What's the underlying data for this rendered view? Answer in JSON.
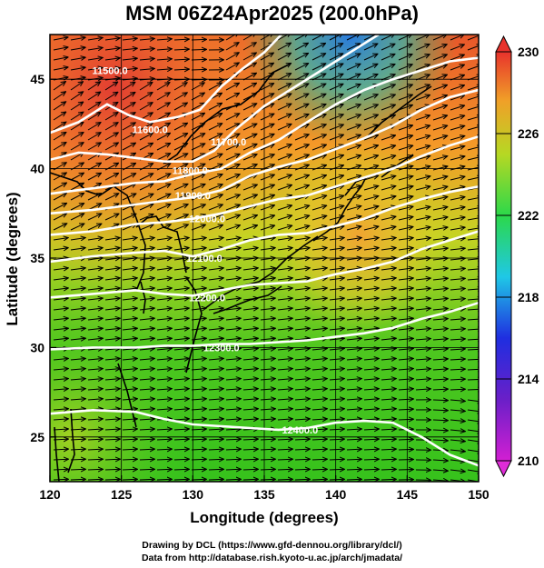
{
  "title": "MSM 06Z24Apr2025 (200.0hPa)",
  "x_axis": {
    "label": "Longitude (degrees)",
    "range": [
      120,
      150
    ],
    "ticks": [
      "120",
      "125",
      "130",
      "135",
      "140",
      "145",
      "150"
    ],
    "tick_values": [
      120,
      125,
      130,
      135,
      140,
      145,
      150
    ]
  },
  "y_axis": {
    "label": "Latitude  (degrees)",
    "range": [
      22.5,
      47.5
    ],
    "ticks": [
      "25",
      "30",
      "35",
      "40",
      "45"
    ],
    "tick_values": [
      25,
      30,
      35,
      40,
      45
    ]
  },
  "colorbar": {
    "ticks": [
      "210",
      "214",
      "218",
      "222",
      "226",
      "230"
    ],
    "tick_values": [
      210,
      214,
      218,
      222,
      226,
      230
    ],
    "range": [
      210,
      230
    ]
  },
  "contour_labels": [
    {
      "text": "11500.0",
      "lon": 124.2,
      "lat": 45.5
    },
    {
      "text": "11600.0",
      "lon": 127.0,
      "lat": 42.2
    },
    {
      "text": "11700.0",
      "lon": 132.5,
      "lat": 41.5
    },
    {
      "text": "11800.0",
      "lon": 129.8,
      "lat": 39.9
    },
    {
      "text": "11900.0",
      "lon": 130.0,
      "lat": 38.5
    },
    {
      "text": "12000.0",
      "lon": 131.0,
      "lat": 37.2
    },
    {
      "text": "12100.0",
      "lon": 130.8,
      "lat": 35.0
    },
    {
      "text": "12200.0",
      "lon": 131.0,
      "lat": 32.8
    },
    {
      "text": "12300.0",
      "lon": 132.0,
      "lat": 30.0
    },
    {
      "text": "12400.0",
      "lon": 137.5,
      "lat": 25.4
    }
  ],
  "contours": [
    [
      [
        120,
        42.0
      ],
      [
        122,
        42.6
      ],
      [
        124,
        43.6
      ],
      [
        125.5,
        43.0
      ],
      [
        127,
        42.6
      ],
      [
        129,
        42.9
      ],
      [
        130.5,
        43.3
      ],
      [
        132,
        44.6
      ],
      [
        133.5,
        45.6
      ],
      [
        135,
        46.5
      ],
      [
        136.2,
        47.5
      ]
    ],
    [
      [
        120,
        40.5
      ],
      [
        122,
        40.9
      ],
      [
        124,
        40.8
      ],
      [
        126,
        40.6
      ],
      [
        128,
        40.4
      ],
      [
        130,
        40.4
      ],
      [
        131.5,
        41.0
      ],
      [
        133,
        42.2
      ],
      [
        135,
        43.5
      ],
      [
        137,
        44.5
      ],
      [
        139,
        45.5
      ],
      [
        141,
        46.5
      ],
      [
        143,
        47.5
      ]
    ],
    [
      [
        120,
        38.6
      ],
      [
        123,
        38.9
      ],
      [
        126,
        39.2
      ],
      [
        128,
        39.3
      ],
      [
        130,
        39.7
      ],
      [
        132,
        40.0
      ],
      [
        134,
        40.9
      ],
      [
        136,
        41.6
      ],
      [
        138,
        42.6
      ],
      [
        140,
        43.6
      ],
      [
        142,
        44.4
      ],
      [
        144,
        45.0
      ],
      [
        146,
        45.5
      ],
      [
        148,
        46.0
      ],
      [
        150,
        46.2
      ]
    ],
    [
      [
        120,
        37.5
      ],
      [
        123,
        37.7
      ],
      [
        126,
        38.0
      ],
      [
        128,
        38.2
      ],
      [
        130,
        38.4
      ],
      [
        132,
        38.8
      ],
      [
        134,
        39.6
      ],
      [
        136,
        40.1
      ],
      [
        138,
        40.5
      ],
      [
        140,
        41.1
      ],
      [
        142,
        41.7
      ],
      [
        144,
        42.4
      ],
      [
        146,
        43.3
      ],
      [
        148,
        44.0
      ],
      [
        150,
        44.4
      ]
    ],
    [
      [
        120,
        36.3
      ],
      [
        123,
        36.5
      ],
      [
        126,
        36.9
      ],
      [
        128,
        37.0
      ],
      [
        130,
        37.2
      ],
      [
        132,
        37.5
      ],
      [
        134,
        37.9
      ],
      [
        136,
        38.3
      ],
      [
        138,
        38.5
      ],
      [
        140,
        39.0
      ],
      [
        142,
        39.5
      ],
      [
        144,
        40.0
      ],
      [
        146,
        40.7
      ],
      [
        148,
        41.3
      ],
      [
        150,
        41.8
      ]
    ],
    [
      [
        120,
        34.8
      ],
      [
        123,
        35.1
      ],
      [
        126,
        35.3
      ],
      [
        128,
        35.4
      ],
      [
        130,
        35.1
      ],
      [
        132,
        35.5
      ],
      [
        134,
        36.0
      ],
      [
        136,
        36.3
      ],
      [
        138,
        36.4
      ],
      [
        140,
        36.8
      ],
      [
        142,
        37.2
      ],
      [
        144,
        37.8
      ],
      [
        146,
        38.3
      ],
      [
        148,
        38.7
      ],
      [
        150,
        39.0
      ]
    ],
    [
      [
        120,
        32.8
      ],
      [
        123,
        33.0
      ],
      [
        126,
        33.2
      ],
      [
        128,
        33.0
      ],
      [
        130,
        32.9
      ],
      [
        132,
        33.2
      ],
      [
        134,
        33.5
      ],
      [
        136,
        33.6
      ],
      [
        138,
        33.7
      ],
      [
        140,
        34.1
      ],
      [
        142,
        34.4
      ],
      [
        144,
        34.8
      ],
      [
        146,
        35.5
      ],
      [
        148,
        36.0
      ],
      [
        150,
        36.5
      ]
    ],
    [
      [
        120,
        29.9
      ],
      [
        123,
        30.0
      ],
      [
        126,
        30.0
      ],
      [
        128,
        30.1
      ],
      [
        130,
        30.1
      ],
      [
        132,
        30.2
      ],
      [
        134,
        30.2
      ],
      [
        136,
        30.3
      ],
      [
        138,
        30.4
      ],
      [
        140,
        30.6
      ],
      [
        142,
        30.8
      ],
      [
        144,
        31.1
      ],
      [
        146,
        31.6
      ],
      [
        148,
        32.0
      ],
      [
        150,
        32.5
      ]
    ],
    [
      [
        120,
        26.3
      ],
      [
        123,
        26.5
      ],
      [
        126,
        26.4
      ],
      [
        128,
        26.0
      ],
      [
        130,
        25.7
      ],
      [
        132,
        25.6
      ],
      [
        134,
        25.5
      ],
      [
        136,
        25.4
      ],
      [
        138,
        25.5
      ],
      [
        140,
        25.8
      ],
      [
        142,
        25.9
      ],
      [
        144,
        25.8
      ],
      [
        146,
        25.0
      ],
      [
        148,
        24.0
      ],
      [
        150,
        23.4
      ]
    ]
  ],
  "credits": [
    "Drawing by DCL (https://www.gfd-dennou.org/library/dcl/)",
    "Data from http://database.rish.kyoto-u.ac.jp/arch/jmadata/"
  ]
}
